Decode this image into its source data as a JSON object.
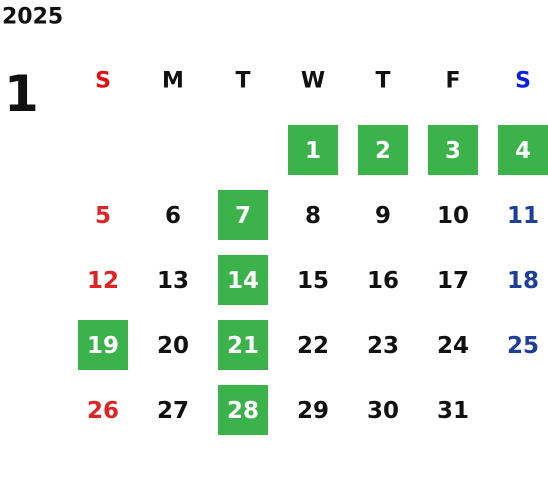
{
  "year": "2025",
  "month": "1",
  "weekdays": [
    "S",
    "M",
    "T",
    "W",
    "T",
    "F",
    "S"
  ],
  "weeks": [
    [
      null,
      null,
      null,
      {
        "day": "1",
        "marked": true
      },
      {
        "day": "2",
        "marked": true
      },
      {
        "day": "3",
        "marked": true
      },
      {
        "day": "4",
        "marked": true
      }
    ],
    [
      {
        "day": "5",
        "marked": false
      },
      {
        "day": "6",
        "marked": false
      },
      {
        "day": "7",
        "marked": true
      },
      {
        "day": "8",
        "marked": false
      },
      {
        "day": "9",
        "marked": false
      },
      {
        "day": "10",
        "marked": false
      },
      {
        "day": "11",
        "marked": false
      }
    ],
    [
      {
        "day": "12",
        "marked": false
      },
      {
        "day": "13",
        "marked": false
      },
      {
        "day": "14",
        "marked": true
      },
      {
        "day": "15",
        "marked": false
      },
      {
        "day": "16",
        "marked": false
      },
      {
        "day": "17",
        "marked": false
      },
      {
        "day": "18",
        "marked": false
      }
    ],
    [
      {
        "day": "19",
        "marked": true
      },
      {
        "day": "20",
        "marked": false
      },
      {
        "day": "21",
        "marked": true
      },
      {
        "day": "22",
        "marked": false
      },
      {
        "day": "23",
        "marked": false
      },
      {
        "day": "24",
        "marked": false
      },
      {
        "day": "25",
        "marked": false
      }
    ],
    [
      {
        "day": "26",
        "marked": false
      },
      {
        "day": "27",
        "marked": false
      },
      {
        "day": "28",
        "marked": true
      },
      {
        "day": "29",
        "marked": false
      },
      {
        "day": "30",
        "marked": false
      },
      {
        "day": "31",
        "marked": false
      },
      null
    ]
  ],
  "colors": {
    "sunday_header": "#e01010",
    "saturday_header": "#0a1fe0",
    "sunday": "#e02424",
    "saturday": "#1e3f99",
    "weekday": "#111111",
    "marked_bg": "#3cb34a",
    "marked_text": "#ffffff"
  }
}
